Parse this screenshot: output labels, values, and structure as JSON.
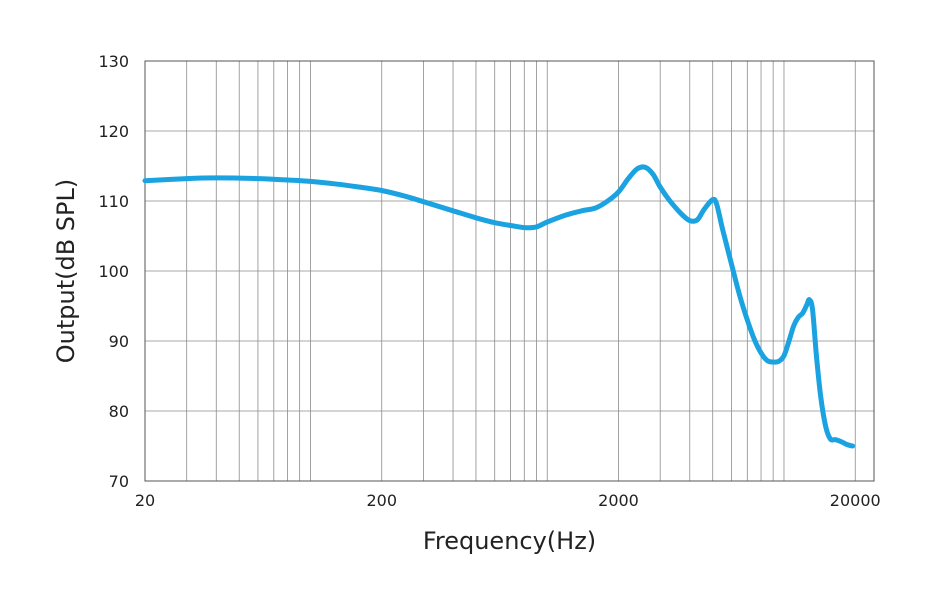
{
  "chart_data": {
    "type": "line",
    "title": "",
    "xlabel": "Frequency(Hz)",
    "ylabel": "Output(dB SPL)",
    "x_scale": "log",
    "xlim": [
      20,
      24000
    ],
    "ylim": [
      70,
      130
    ],
    "grid": true,
    "legend": "none",
    "x_ticks": [
      {
        "value": 20,
        "label": "20"
      },
      {
        "value": 200,
        "label": "200"
      },
      {
        "value": 2000,
        "label": "2000"
      },
      {
        "value": 20000,
        "label": "20000"
      }
    ],
    "y_ticks": [
      {
        "value": 70,
        "label": "70"
      },
      {
        "value": 80,
        "label": "80"
      },
      {
        "value": 90,
        "label": "90"
      },
      {
        "value": 100,
        "label": "100"
      },
      {
        "value": 110,
        "label": "110"
      },
      {
        "value": 120,
        "label": "120"
      },
      {
        "value": 130,
        "label": "130"
      }
    ],
    "series": [
      {
        "name": "",
        "color": "#1aa3e0",
        "points": [
          [
            20,
            112.9
          ],
          [
            30,
            113.2
          ],
          [
            40,
            113.3
          ],
          [
            60,
            113.2
          ],
          [
            80,
            113.0
          ],
          [
            100,
            112.8
          ],
          [
            130,
            112.4
          ],
          [
            160,
            112.0
          ],
          [
            200,
            111.5
          ],
          [
            250,
            110.7
          ],
          [
            300,
            109.9
          ],
          [
            400,
            108.6
          ],
          [
            500,
            107.6
          ],
          [
            600,
            106.9
          ],
          [
            700,
            106.5
          ],
          [
            800,
            106.2
          ],
          [
            900,
            106.3
          ],
          [
            1000,
            107.0
          ],
          [
            1200,
            108.0
          ],
          [
            1400,
            108.6
          ],
          [
            1600,
            109.0
          ],
          [
            1800,
            110.0
          ],
          [
            2000,
            111.3
          ],
          [
            2200,
            113.2
          ],
          [
            2400,
            114.6
          ],
          [
            2600,
            114.8
          ],
          [
            2800,
            113.8
          ],
          [
            3000,
            112.0
          ],
          [
            3300,
            110.0
          ],
          [
            3700,
            108.1
          ],
          [
            4000,
            107.2
          ],
          [
            4300,
            107.3
          ],
          [
            4600,
            108.8
          ],
          [
            5000,
            110.2
          ],
          [
            5200,
            109.5
          ],
          [
            5500,
            106.0
          ],
          [
            6000,
            101.0
          ],
          [
            6500,
            96.5
          ],
          [
            7000,
            93.0
          ],
          [
            7500,
            90.2
          ],
          [
            8000,
            88.3
          ],
          [
            8500,
            87.2
          ],
          [
            9000,
            87.0
          ],
          [
            9500,
            87.1
          ],
          [
            10000,
            87.9
          ],
          [
            10500,
            90.0
          ],
          [
            11000,
            92.2
          ],
          [
            11500,
            93.4
          ],
          [
            12000,
            94.0
          ],
          [
            12500,
            95.2
          ],
          [
            12800,
            95.9
          ],
          [
            13200,
            94.5
          ],
          [
            13700,
            88.0
          ],
          [
            14300,
            82.0
          ],
          [
            15000,
            77.8
          ],
          [
            15700,
            76.0
          ],
          [
            16500,
            75.9
          ],
          [
            17500,
            75.6
          ],
          [
            18500,
            75.2
          ],
          [
            19500,
            75.0
          ]
        ]
      }
    ]
  }
}
